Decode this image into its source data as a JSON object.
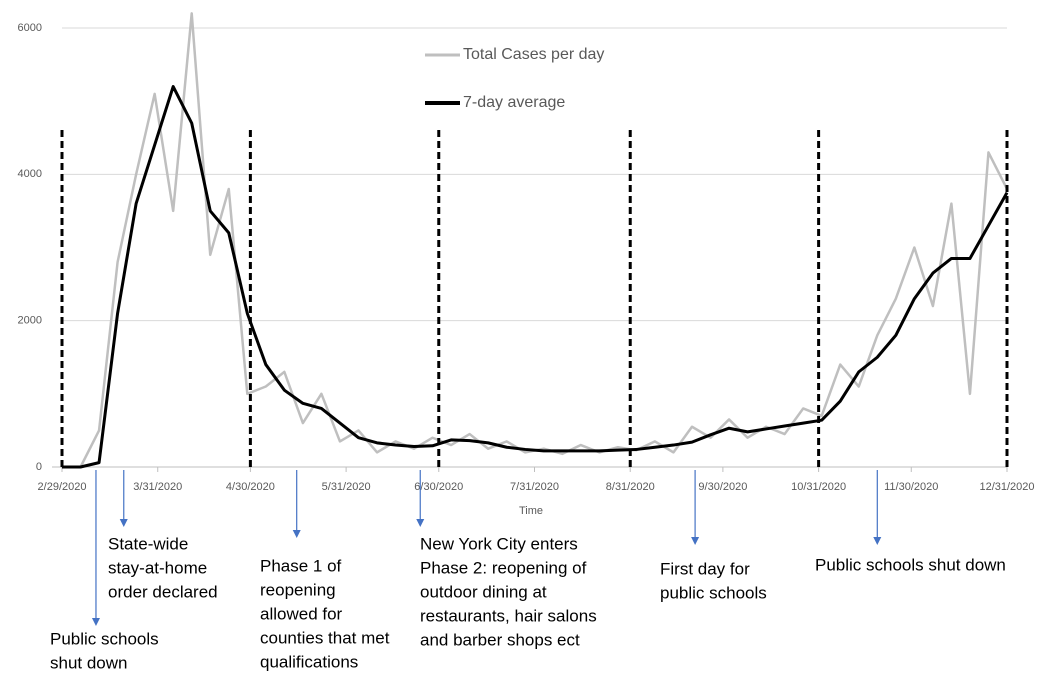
{
  "chart_data": {
    "type": "line",
    "x_label": "Time",
    "x": [
      "2/29/2020",
      "3/6/2020",
      "3/12/2020",
      "3/18/2020",
      "3/24/2020",
      "3/30/2020",
      "4/5/2020",
      "4/11/2020",
      "4/17/2020",
      "4/23/2020",
      "4/29/2020",
      "5/5/2020",
      "5/11/2020",
      "5/17/2020",
      "5/23/2020",
      "5/29/2020",
      "6/4/2020",
      "6/10/2020",
      "6/16/2020",
      "6/22/2020",
      "6/28/2020",
      "7/4/2020",
      "7/10/2020",
      "7/16/2020",
      "7/22/2020",
      "7/28/2020",
      "8/3/2020",
      "8/9/2020",
      "8/15/2020",
      "8/21/2020",
      "8/27/2020",
      "9/2/2020",
      "9/8/2020",
      "9/14/2020",
      "9/20/2020",
      "9/26/2020",
      "10/2/2020",
      "10/8/2020",
      "10/14/2020",
      "10/20/2020",
      "10/26/2020",
      "11/1/2020",
      "11/7/2020",
      "11/13/2020",
      "11/19/2020",
      "11/25/2020",
      "12/1/2020",
      "12/7/2020",
      "12/13/2020",
      "12/19/2020",
      "12/25/2020",
      "12/31/2020"
    ],
    "series": [
      {
        "name": "Total Cases per day",
        "color": "#bfbfbf",
        "values": [
          0,
          0,
          500,
          2800,
          4000,
          5100,
          3500,
          6200,
          2900,
          3800,
          1000,
          1100,
          1300,
          600,
          1000,
          350,
          500,
          200,
          350,
          250,
          400,
          300,
          450,
          250,
          350,
          200,
          250,
          180,
          300,
          200,
          270,
          230,
          350,
          200,
          550,
          400,
          650,
          400,
          550,
          450,
          800,
          700,
          1400,
          1100,
          1800,
          2300,
          3000,
          2200,
          3600,
          1000,
          4300,
          3800
        ]
      },
      {
        "name": "7-day average",
        "color": "#000000",
        "values": [
          0,
          0,
          60,
          2100,
          3600,
          4400,
          5200,
          4700,
          3500,
          3200,
          2100,
          1400,
          1050,
          870,
          800,
          600,
          400,
          330,
          300,
          280,
          290,
          370,
          360,
          330,
          270,
          240,
          220,
          220,
          220,
          220,
          230,
          240,
          270,
          300,
          340,
          440,
          530,
          480,
          520,
          560,
          600,
          640,
          900,
          1300,
          1500,
          1800,
          2300,
          2650,
          2850,
          2850,
          3300,
          3750
        ]
      }
    ],
    "xlim": [
      "2/29/2020",
      "12/31/2020"
    ],
    "xticks": [
      "2/29/2020",
      "3/31/2020",
      "4/30/2020",
      "5/31/2020",
      "6/30/2020",
      "7/31/2020",
      "8/31/2020",
      "9/30/2020",
      "10/31/2020",
      "11/30/2020",
      "12/31/2020"
    ],
    "ylim": [
      0,
      6000
    ],
    "yticks": [
      0,
      2000,
      4000,
      6000
    ],
    "grid": true,
    "vlines": [
      "2/29/2020",
      "4/30/2020",
      "6/30/2020",
      "8/31/2020",
      "10/31/2020",
      "12/31/2020"
    ],
    "annotations": [
      {
        "x": "3/11/2020",
        "lines": [
          "Public schools",
          "shut down"
        ]
      },
      {
        "x": "3/20/2020",
        "lines": [
          "State-wide",
          "stay-at-home",
          "order declared"
        ]
      },
      {
        "x": "5/15/2020",
        "lines": [
          "Phase 1 of",
          "reopening",
          "allowed for",
          "counties that met",
          "qualifications"
        ]
      },
      {
        "x": "6/24/2020",
        "lines": [
          "New York City enters",
          "Phase 2: reopening of",
          "outdoor dining at",
          "restaurants, hair salons",
          "and barber shops ect"
        ]
      },
      {
        "x": "9/21/2020",
        "lines": [
          "First day for",
          "public schools"
        ]
      },
      {
        "x": "11/19/2020",
        "lines": [
          "Public schools shut down"
        ]
      }
    ]
  }
}
